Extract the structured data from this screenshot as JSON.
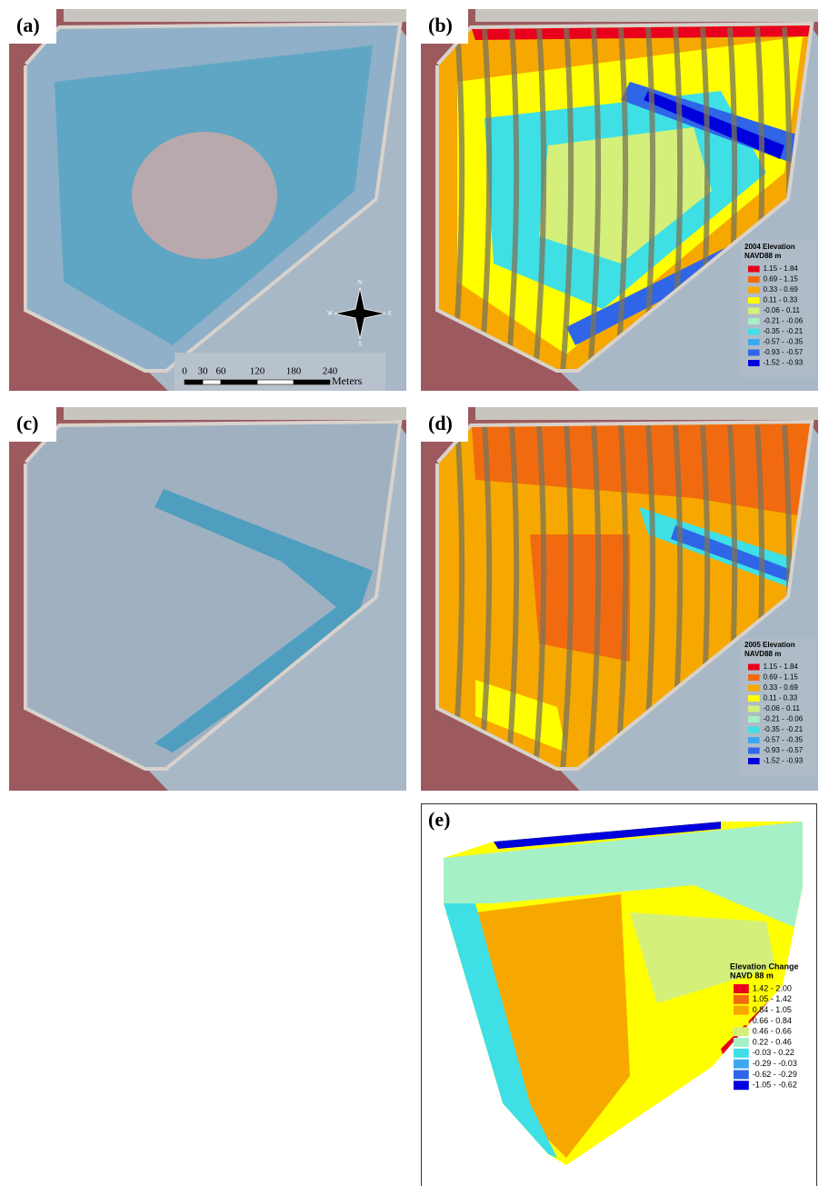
{
  "panels": [
    {
      "label": "(a)",
      "scale_bar": {
        "ticks": [
          0,
          30,
          60,
          120,
          180,
          240
        ],
        "unit": "Meters"
      },
      "north_arrow": {
        "n": "N",
        "e": "E",
        "s": "S",
        "w": "W"
      }
    },
    {
      "label": "(b)",
      "legend": {
        "title_lines": [
          "2004 Elevation",
          "NAVD88 m"
        ],
        "classes": [
          {
            "label": "1.15 - 1.84",
            "color": "#e8001c"
          },
          {
            "label": "0.69 - 1.15",
            "color": "#f26a10"
          },
          {
            "label": "0.33 - 0.69",
            "color": "#f7a800"
          },
          {
            "label": "0.11 - 0.33",
            "color": "#ffff00"
          },
          {
            "label": "-0.06 - 0.11",
            "color": "#d4f07a"
          },
          {
            "label": "-0.21 - -0.06",
            "color": "#a6f0c8"
          },
          {
            "label": "-0.35 - -0.21",
            "color": "#3ee0e6"
          },
          {
            "label": "-0.57 - -0.35",
            "color": "#3aa8f0"
          },
          {
            "label": "-0.93 - -0.57",
            "color": "#2f66e8"
          },
          {
            "label": "-1.52 - -0.93",
            "color": "#0000dc"
          }
        ]
      }
    },
    {
      "label": "(c)"
    },
    {
      "label": "(d)",
      "legend": {
        "title_lines": [
          "2005 Elevation",
          "NAVD88 m"
        ],
        "classes": [
          {
            "label": "1.15 - 1.84",
            "color": "#e8001c"
          },
          {
            "label": "0.69 - 1.15",
            "color": "#f26a10"
          },
          {
            "label": "0.33 - 0.69",
            "color": "#f7a800"
          },
          {
            "label": "0.11 - 0.33",
            "color": "#ffff00"
          },
          {
            "label": "-0.06 - 0.11",
            "color": "#d4f07a"
          },
          {
            "label": "-0.21 - -0.06",
            "color": "#a6f0c8"
          },
          {
            "label": "-0.35 - -0.21",
            "color": "#3ee0e6"
          },
          {
            "label": "-0.57 - -0.35",
            "color": "#3aa8f0"
          },
          {
            "label": "-0.93 - -0.57",
            "color": "#2f66e8"
          },
          {
            "label": "-1.52 - -0.93",
            "color": "#0000dc"
          }
        ]
      }
    },
    {
      "label": "(e)",
      "legend": {
        "title_lines": [
          "Elevation Change",
          "NAVD 88 m"
        ],
        "classes": [
          {
            "label": "1.42 - 2.00",
            "color": "#e8001c"
          },
          {
            "label": "1.05 - 1.42",
            "color": "#f26a10"
          },
          {
            "label": "0.84 - 1.05",
            "color": "#f7a800"
          },
          {
            "label": "0.66 - 0.84",
            "color": "#ffff00"
          },
          {
            "label": "0.46 - 0.66",
            "color": "#d4f07a"
          },
          {
            "label": "0.22 - 0.46",
            "color": "#a6f0c8"
          },
          {
            "label": "-0.03 - 0.22",
            "color": "#3ee0e6"
          },
          {
            "label": "-0.29 - -0.03",
            "color": "#3aa8f0"
          },
          {
            "label": "-0.62 - -0.29",
            "color": "#2f66e8"
          },
          {
            "label": "-1.05 - -0.62",
            "color": "#0000dc"
          }
        ]
      }
    }
  ]
}
